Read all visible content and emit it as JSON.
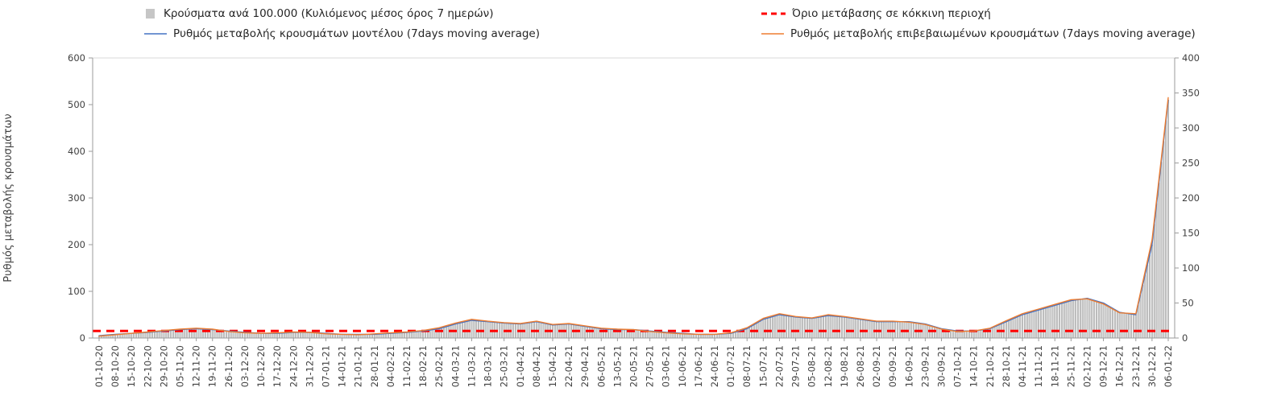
{
  "chart_data": {
    "type": "bar",
    "title": "",
    "legend_position": "top",
    "grid": false,
    "categories": [
      "01-10-20",
      "08-10-20",
      "15-10-20",
      "22-10-20",
      "29-10-20",
      "05-11-20",
      "12-11-20",
      "19-11-20",
      "26-11-20",
      "03-12-20",
      "10-12-20",
      "17-12-20",
      "24-12-20",
      "31-12-20",
      "07-01-21",
      "14-01-21",
      "21-01-21",
      "28-01-21",
      "04-02-21",
      "11-02-21",
      "18-02-21",
      "25-02-21",
      "04-03-21",
      "11-03-21",
      "18-03-21",
      "25-03-21",
      "01-04-21",
      "08-04-21",
      "15-04-21",
      "22-04-21",
      "29-04-21",
      "06-05-21",
      "13-05-21",
      "20-05-21",
      "27-05-21",
      "03-06-21",
      "10-06-21",
      "17-06-21",
      "24-06-21",
      "01-07-21",
      "08-07-21",
      "15-07-21",
      "22-07-21",
      "29-07-21",
      "05-08-21",
      "12-08-21",
      "19-08-21",
      "26-08-21",
      "02-09-21",
      "09-09-21",
      "16-09-21",
      "23-09-21",
      "30-09-21",
      "07-10-21",
      "14-10-21",
      "21-10-21",
      "28-10-21",
      "04-11-21",
      "11-11-21",
      "18-11-21",
      "25-11-21",
      "02-12-21",
      "09-12-21",
      "16-12-21",
      "23-12-21",
      "30-12-21",
      "06-01-22"
    ],
    "series": [
      {
        "name": "Κρούσματα ανά 100.000 (Κυλιόμενος μέσος όρος 7 ημερών)",
        "type": "bar",
        "axis": "right",
        "color": "#c6c6c6",
        "values": [
          3,
          5,
          7,
          8,
          10,
          12,
          13,
          12,
          10,
          8,
          7,
          7,
          8,
          8,
          7,
          5,
          5,
          5,
          7,
          8,
          10,
          13,
          20,
          25,
          23,
          21,
          20,
          23,
          19,
          20,
          17,
          13,
          12,
          12,
          10,
          8,
          7,
          5,
          5,
          7,
          13,
          27,
          33,
          30,
          28,
          32,
          30,
          27,
          23,
          23,
          23,
          20,
          13,
          10,
          10,
          13,
          23,
          33,
          40,
          47,
          53,
          57,
          50,
          37,
          33,
          133,
          340
        ]
      },
      {
        "name": "Όριο μετάβασης σε κόκκινη περιοχή",
        "type": "threshold",
        "axis": "right",
        "color": "#ff0000",
        "value": 10
      },
      {
        "name": "Ρυθμός μεταβολής κρουσμάτων μοντέλου (7days moving average)",
        "type": "line",
        "axis": "left",
        "color": "#4472c4",
        "values": [
          5,
          8,
          10,
          12,
          15,
          18,
          20,
          18,
          15,
          12,
          10,
          10,
          12,
          12,
          10,
          8,
          8,
          8,
          10,
          12,
          15,
          20,
          30,
          38,
          35,
          32,
          30,
          35,
          28,
          30,
          25,
          20,
          18,
          18,
          15,
          12,
          10,
          8,
          8,
          10,
          20,
          40,
          50,
          45,
          42,
          48,
          45,
          40,
          35,
          35,
          35,
          30,
          20,
          15,
          15,
          20,
          35,
          50,
          60,
          70,
          80,
          85,
          75,
          55,
          50,
          200,
          510
        ]
      },
      {
        "name": "Ρυθμός μεταβολής επιβεβαιωμένων κρουσμάτων (7days moving average)",
        "type": "line",
        "axis": "left",
        "color": "#ed7d31",
        "values": [
          4,
          7,
          10,
          13,
          16,
          19,
          21,
          19,
          14,
          11,
          10,
          11,
          13,
          12,
          9,
          8,
          7,
          9,
          11,
          13,
          16,
          22,
          32,
          40,
          36,
          33,
          31,
          36,
          29,
          31,
          26,
          21,
          19,
          18,
          14,
          11,
          9,
          8,
          8,
          11,
          22,
          42,
          52,
          46,
          43,
          50,
          46,
          41,
          36,
          36,
          34,
          29,
          19,
          14,
          15,
          21,
          37,
          52,
          62,
          72,
          82,
          84,
          73,
          54,
          52,
          210,
          515
        ]
      }
    ],
    "left_axis": {
      "label": "Ρυθμός μεταβολής κρουσμάτων",
      "min": 0,
      "max": 600,
      "ticks": [
        0,
        100,
        200,
        300,
        400,
        500,
        600
      ]
    },
    "right_axis": {
      "label": "",
      "min": 0,
      "max": 400,
      "ticks": [
        0,
        50,
        100,
        150,
        200,
        250,
        300,
        350,
        400
      ]
    }
  }
}
